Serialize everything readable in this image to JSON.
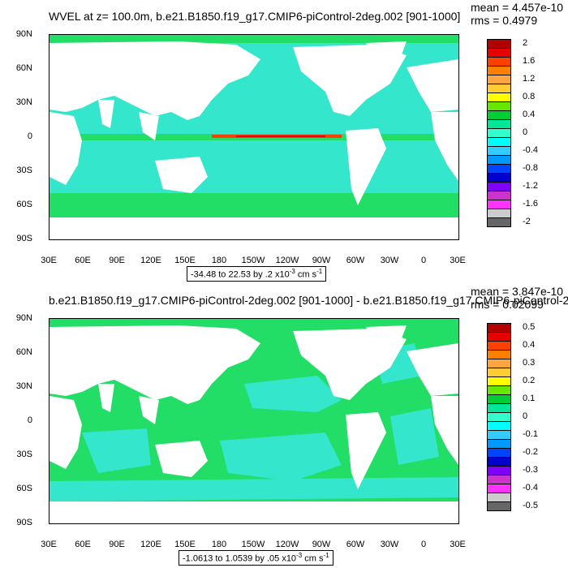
{
  "panel1": {
    "title": "WVEL at z= 100.0m, b.e21.B1850.f19_g17.CMIP6-piControl-2deg.002 [901-1000]",
    "mean": "mean = 4.457e-10",
    "rms": "rms = 0.4979",
    "range_label": "-34.48 to 22.53 by .2 x10",
    "range_exp": "-3",
    "range_unit": " cm s",
    "range_unit_exp": "-1",
    "colorbar": {
      "labels": [
        "2",
        "1.6",
        "1.2",
        "0.8",
        "0.4",
        "0",
        "-0.4",
        "-0.8",
        "-1.2",
        "-1.6",
        "-2"
      ],
      "colors": [
        "#b30000",
        "#e60000",
        "#ff4000",
        "#ff8000",
        "#ffa640",
        "#ffcc33",
        "#ffff00",
        "#66e600",
        "#00cc33",
        "#00e699",
        "#33ffcc",
        "#00ffff",
        "#33ccff",
        "#0099ff",
        "#0044ff",
        "#0000cc",
        "#8000ff",
        "#cc33cc",
        "#ff33ff",
        "#cccccc",
        "#666666"
      ]
    }
  },
  "panel2": {
    "title": "b.e21.B1850.f19_g17.CMIP6-piControl-2deg.002 [901-1000] - b.e21.B1850.f19_g17.CMIP6-piControl-2d",
    "mean": "mean = 3.847e-10",
    "rms": "rms = 0.02099",
    "range_label": "-1.0613 to 1.0539 by .05 x10",
    "range_exp": "-3",
    "range_unit": " cm s",
    "range_unit_exp": "-1",
    "colorbar": {
      "labels": [
        "0.5",
        "0.4",
        "0.3",
        "0.2",
        "0.1",
        "0",
        "-0.1",
        "-0.2",
        "-0.3",
        "-0.4",
        "-0.5"
      ],
      "colors": [
        "#b30000",
        "#e60000",
        "#ff4000",
        "#ff8000",
        "#ffa640",
        "#ffcc33",
        "#ffff00",
        "#66e600",
        "#00cc33",
        "#00e699",
        "#33ffcc",
        "#00ffff",
        "#33ccff",
        "#0099ff",
        "#0044ff",
        "#0000cc",
        "#8000ff",
        "#cc33cc",
        "#ff33ff",
        "#cccccc",
        "#666666"
      ]
    }
  },
  "axes": {
    "lat_labels": [
      "90N",
      "60N",
      "30N",
      "0",
      "30S",
      "60S",
      "90S"
    ],
    "lon_labels": [
      "30E",
      "60E",
      "90E",
      "120E",
      "150E",
      "180",
      "150W",
      "120W",
      "90W",
      "60W",
      "30W",
      "0",
      "30E"
    ]
  },
  "colors": {
    "ocean_background_1": "#33e6cc",
    "ocean_background_2": "#33e6cc",
    "green_band": "#22dd66",
    "land": "#ffffff"
  }
}
